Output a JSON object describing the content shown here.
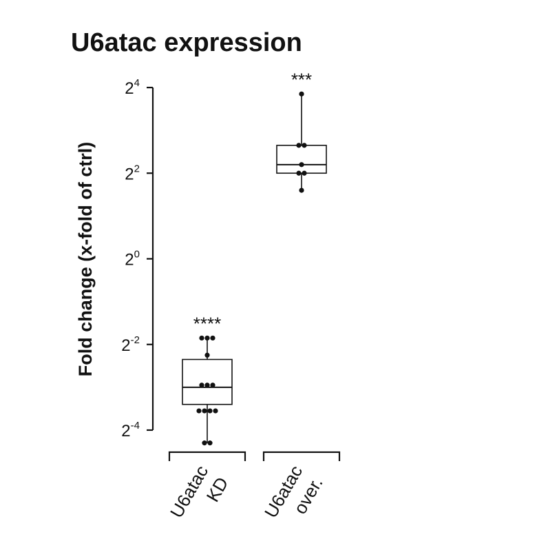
{
  "chart_data": {
    "type": "box",
    "title": "U6atac expression",
    "ylabel": "Fold change (x-fold of ctrl)",
    "y_scale": "log2",
    "ylim_log2": [
      -4,
      4
    ],
    "y_ticks": [
      {
        "base": "2",
        "exp": "4",
        "log2": 4
      },
      {
        "base": "2",
        "exp": "2",
        "log2": 2
      },
      {
        "base": "2",
        "exp": "0",
        "log2": 0
      },
      {
        "base": "2",
        "exp": "-2",
        "log2": -2
      },
      {
        "base": "2",
        "exp": "-4",
        "log2": -4
      }
    ],
    "grid": false,
    "groups": [
      {
        "label_lines": [
          "U6atac",
          "KD"
        ],
        "significance": "****",
        "box_log2": {
          "min": -4.3,
          "q1": -3.4,
          "median": -3.0,
          "q3": -2.35,
          "max": -1.85
        },
        "points_log2": [
          -1.85,
          -1.85,
          -1.85,
          -2.25,
          -2.95,
          -2.95,
          -2.95,
          -3.55,
          -3.55,
          -3.55,
          -3.55,
          -4.3,
          -4.3
        ]
      },
      {
        "label_lines": [
          "U6atac",
          "over."
        ],
        "significance": "***",
        "box_log2": {
          "min": 1.6,
          "q1": 2.0,
          "median": 2.2,
          "q3": 2.65,
          "max": 3.85
        },
        "points_log2": [
          3.85,
          2.65,
          2.65,
          2.2,
          2.0,
          2.0,
          1.6
        ]
      }
    ]
  }
}
